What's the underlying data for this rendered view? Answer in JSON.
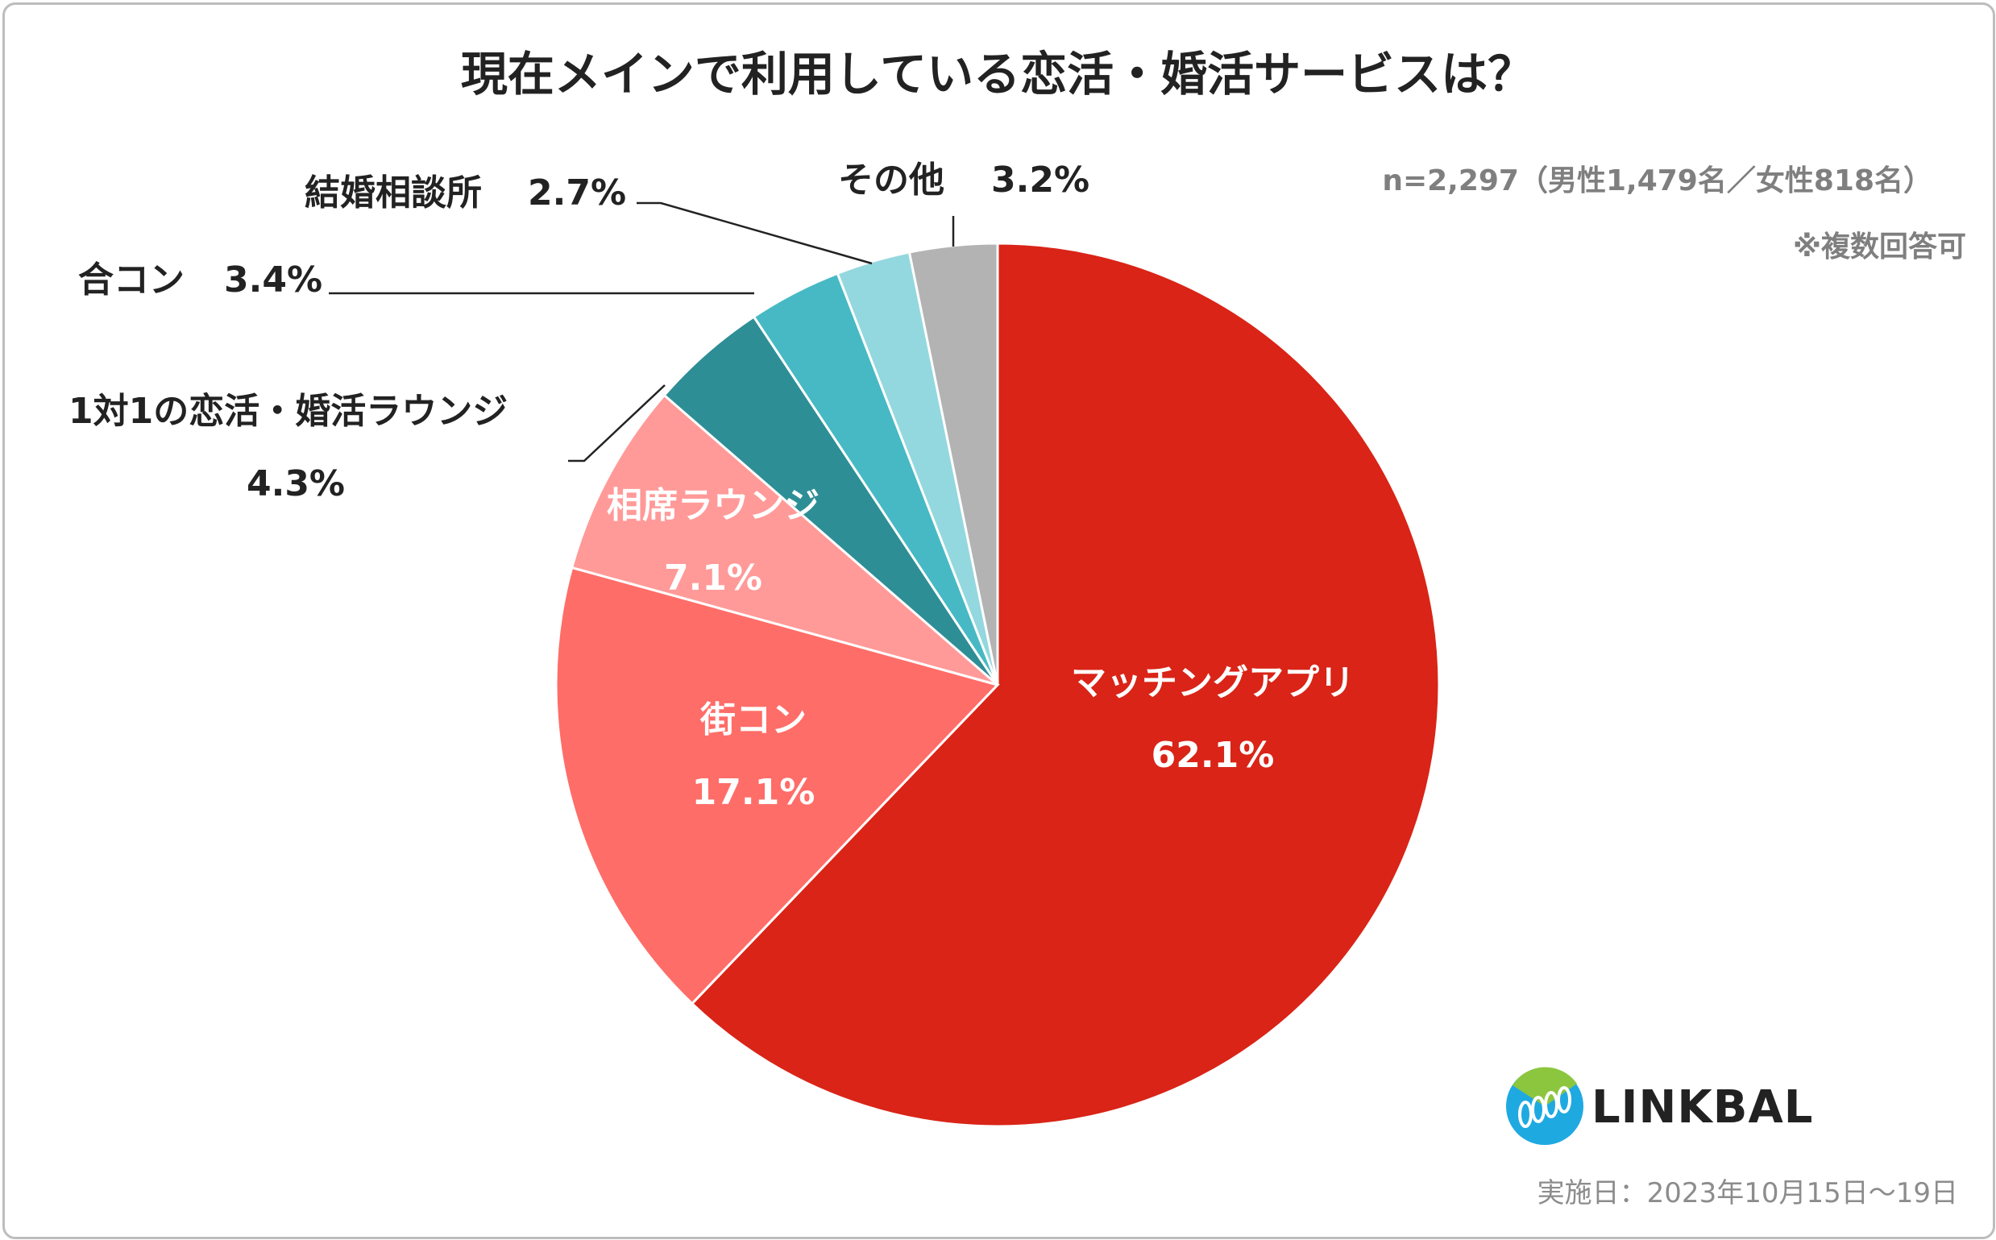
{
  "chart_data": {
    "type": "pie",
    "title": "現在メインで利用している恋活・婚活サービスは？",
    "categories": [
      "マッチングアプリ",
      "街コン",
      "相席ラウンジ",
      "1対1の恋活・婚活ラウンジ",
      "合コン",
      "結婚相談所",
      "その他"
    ],
    "values": [
      62.1,
      17.1,
      7.1,
      4.3,
      3.4,
      2.7,
      3.2
    ],
    "value_labels": [
      "62.1%",
      "17.1%",
      "7.1%",
      "4.3%",
      "3.4%",
      "2.7%",
      "3.2%"
    ],
    "start_angle": "12 o'clock",
    "direction": "clockwise",
    "colors": [
      "#d92417",
      "#ff6d68",
      "#ff9a98",
      "#2e8e96",
      "#47b9c4",
      "#93d8de",
      "#b3b3b3"
    ]
  },
  "sample_note": "n=2,297（男性1,479名／女性818名）",
  "multi_answer_note": "※複数回答可",
  "brand": {
    "name": "LINKBAL"
  },
  "footer": {
    "survey_date": "実施日：2023年10月15日～19日"
  }
}
